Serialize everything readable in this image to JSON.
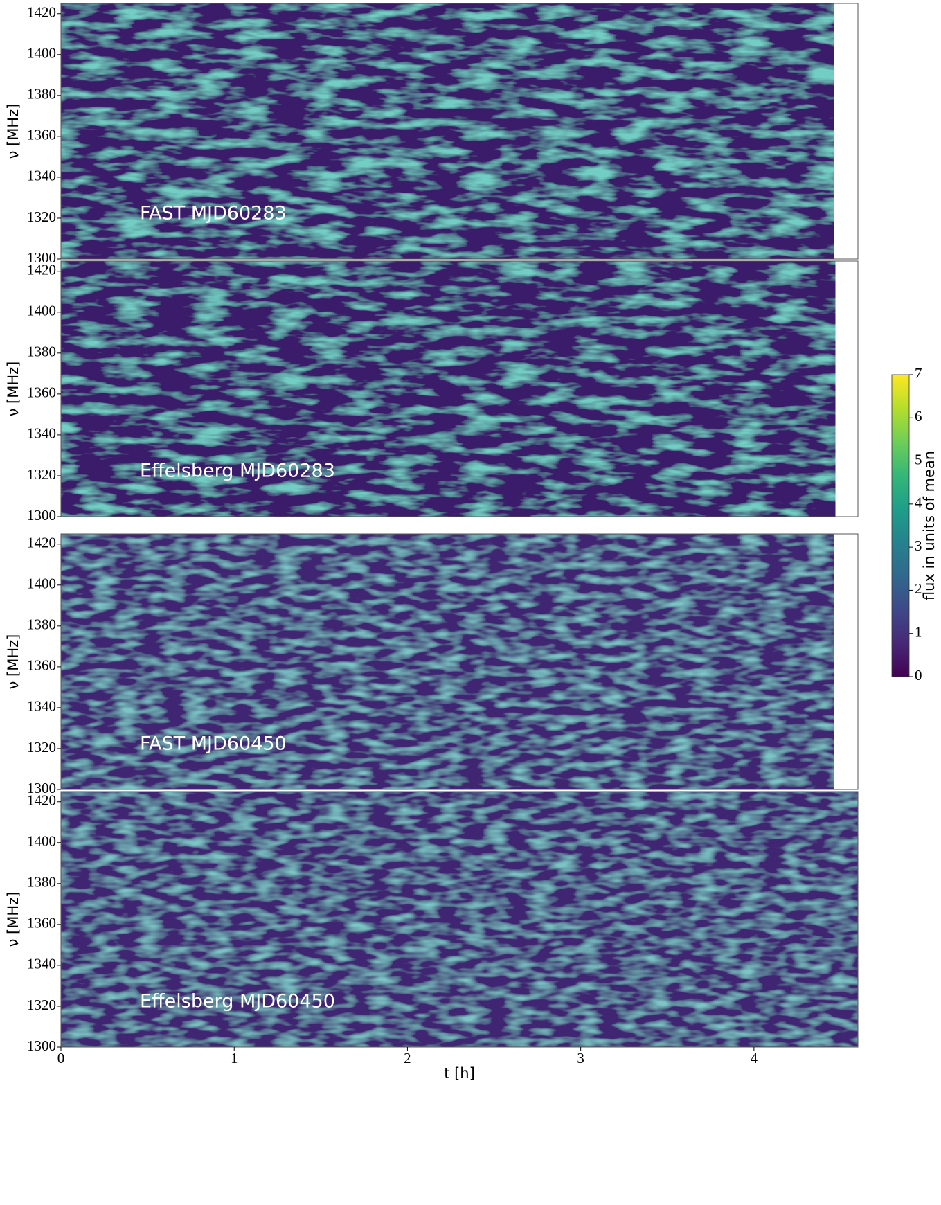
{
  "chart_data": [
    {
      "type": "heatmap",
      "label": "FAST MJD60283",
      "ylabel": "ν [MHz]",
      "xlim": [
        0,
        4.6
      ],
      "t_range": [
        0,
        4.46
      ],
      "ylim": [
        1300,
        1425
      ],
      "yticks": [
        1300,
        1320,
        1340,
        1360,
        1380,
        1400,
        1420
      ]
    },
    {
      "type": "heatmap",
      "label": "Effelsberg MJD60283",
      "ylabel": "ν [MHz]",
      "xlim": [
        0,
        4.6
      ],
      "t_range": [
        0,
        4.47
      ],
      "ylim": [
        1300,
        1425
      ],
      "yticks": [
        1300,
        1320,
        1340,
        1360,
        1380,
        1400,
        1420
      ]
    },
    {
      "type": "heatmap",
      "label": "FAST MJD60450",
      "ylabel": "ν [MHz]",
      "xlim": [
        0,
        4.6
      ],
      "t_range": [
        0,
        4.46
      ],
      "ylim": [
        1300,
        1425
      ],
      "yticks": [
        1300,
        1320,
        1340,
        1360,
        1380,
        1400,
        1420
      ]
    },
    {
      "type": "heatmap",
      "label": "Effelsberg MJD60450",
      "ylabel": "ν [MHz]",
      "xlabel": "t [h]",
      "xlim": [
        0,
        4.6
      ],
      "t_range": [
        0,
        4.6
      ],
      "ylim": [
        1300,
        1425
      ],
      "yticks": [
        1300,
        1320,
        1340,
        1360,
        1380,
        1400,
        1420
      ],
      "xticks": [
        0,
        1,
        2,
        3,
        4
      ]
    },
    {
      "type": "colorbar",
      "label": "flux in units of mean",
      "ylim": [
        0,
        7
      ],
      "yticks": [
        0,
        1,
        2,
        3,
        4,
        5,
        6,
        7
      ],
      "colormap": [
        "#440154",
        "#482878",
        "#3e4989",
        "#31688e",
        "#26828e",
        "#1f9e89",
        "#35b779",
        "#6ece58",
        "#b5de2b",
        "#fde725"
      ]
    }
  ]
}
